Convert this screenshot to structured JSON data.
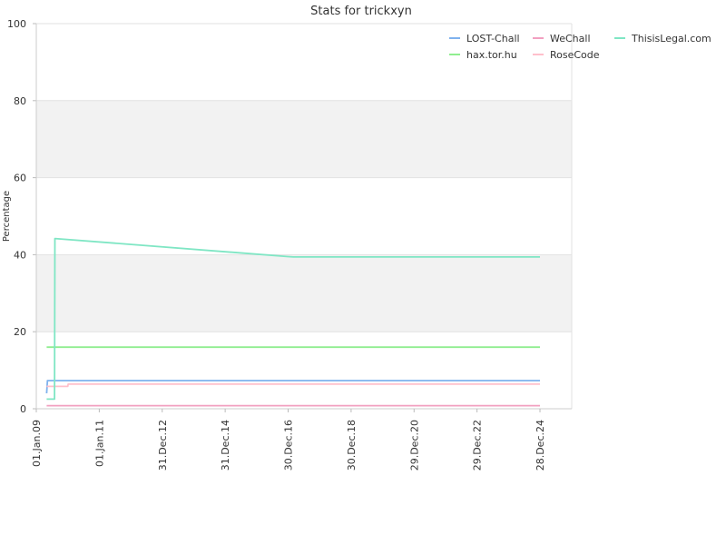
{
  "chart_data": {
    "type": "line",
    "title": "Stats for trickxyn",
    "ylabel": "Percentage",
    "xlabel": "",
    "ylim": [
      0,
      100
    ],
    "y_ticks": [
      "0",
      "20",
      "40",
      "60",
      "80",
      "100"
    ],
    "x_ticks": [
      "01.Jan.09",
      "01.Jan.11",
      "31.Dec.12",
      "31.Dec.14",
      "30.Dec.16",
      "30.Dec.18",
      "29.Dec.20",
      "29.Dec.22",
      "28.Dec.24"
    ],
    "x_range": [
      "2009-01-01",
      "2025-12-31"
    ],
    "grid": true,
    "alternate_bands": true,
    "legend_position": "top-right",
    "series": [
      {
        "name": "LOST-Chall",
        "color": "#7fb2ee",
        "points": [
          [
            "2009-05-01",
            4
          ],
          [
            "2009-05-10",
            7.3
          ],
          [
            "2024-12-28",
            7.3
          ]
        ]
      },
      {
        "name": "hax.tor.hu",
        "color": "#90ee90",
        "points": [
          [
            "2009-05-01",
            16
          ],
          [
            "2024-12-28",
            16
          ]
        ]
      },
      {
        "name": "WeChall",
        "color": "#f2a0c0",
        "points": [
          [
            "2009-05-01",
            0.8
          ],
          [
            "2024-12-28",
            0.8
          ]
        ]
      },
      {
        "name": "RoseCode",
        "color": "#ffc0cb",
        "points": [
          [
            "2009-05-01",
            5.8
          ],
          [
            "2010-01-01",
            5.8
          ],
          [
            "2010-01-05",
            6.4
          ],
          [
            "2024-12-28",
            6.4
          ]
        ]
      },
      {
        "name": "ThisisLegal.com",
        "color": "#7fe6c4",
        "points": [
          [
            "2009-05-01",
            2.5
          ],
          [
            "2009-08-01",
            2.5
          ],
          [
            "2009-08-05",
            44.2
          ],
          [
            "2016-12-30",
            39.5
          ],
          [
            "2017-03-01",
            39.4
          ],
          [
            "2024-12-28",
            39.4
          ]
        ]
      }
    ]
  }
}
